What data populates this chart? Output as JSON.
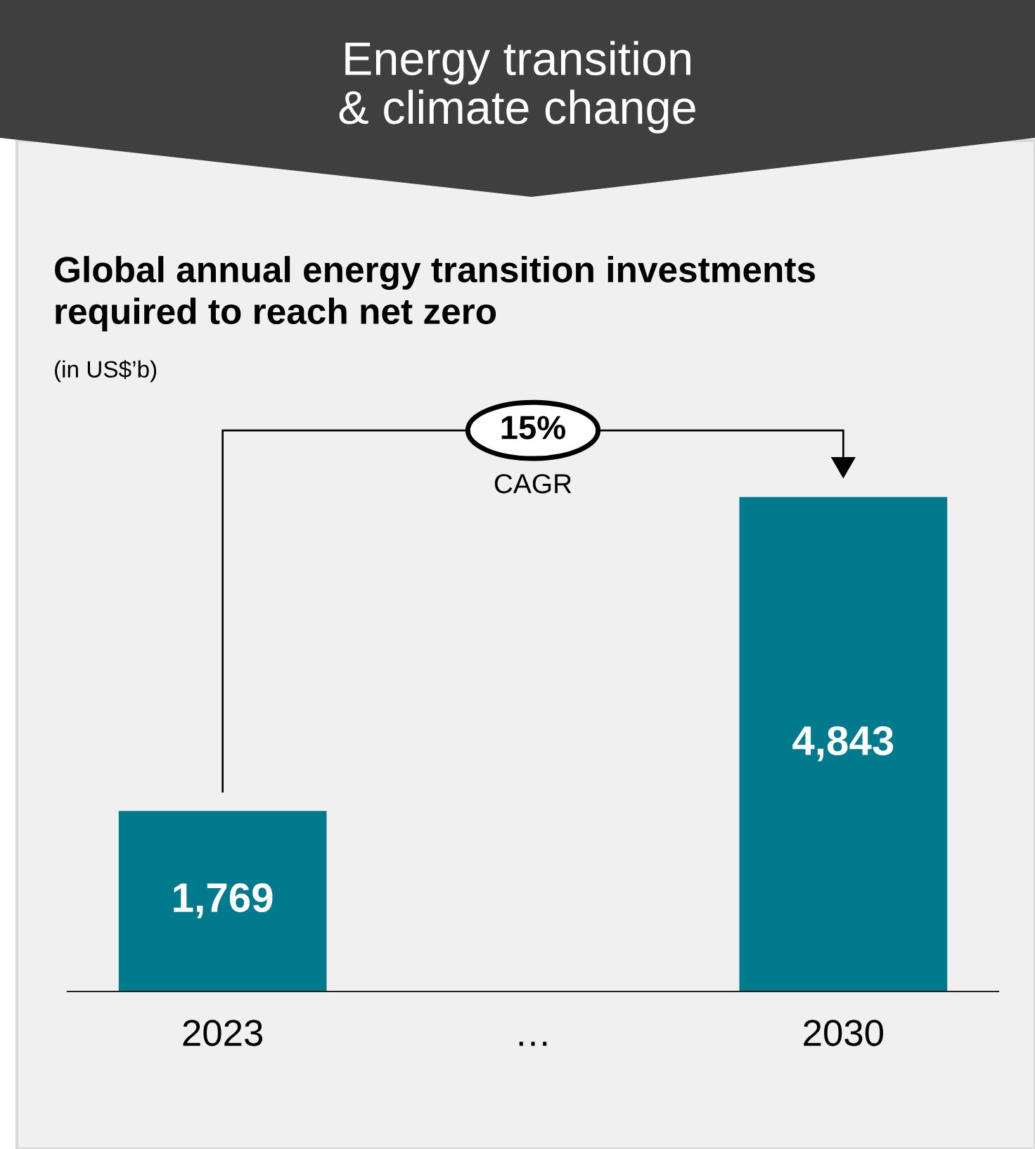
{
  "chart_data": {
    "type": "bar",
    "title": "Energy transition\n& climate change",
    "subtitle": "Global annual energy transition investments\nrequired to reach net zero",
    "annotations": [
      "(in US$’b)",
      "15%",
      "CAGR"
    ],
    "categories": [
      "2023",
      "…",
      "2030"
    ],
    "values": [
      1769,
      null,
      4843
    ],
    "color": "#007a8c",
    "value_labels": [
      "1,769",
      null,
      "4,843"
    ],
    "tick_labels": "x"
  }
}
